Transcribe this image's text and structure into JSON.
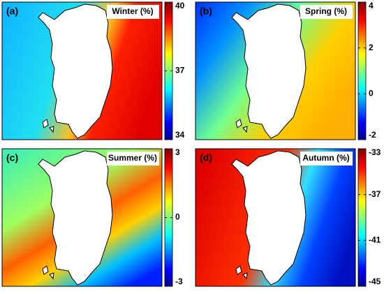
{
  "panels": [
    {
      "label": "(a)",
      "title": "Winter (%)",
      "colorbar": {
        "lim": [
          34,
          40
        ],
        "ticks": [
          34,
          37,
          40
        ]
      }
    },
    {
      "label": "(b)",
      "title": "Spring (%)",
      "colorbar": {
        "lim": [
          -2,
          4
        ],
        "ticks": [
          -2,
          0,
          2,
          4
        ]
      }
    },
    {
      "label": "(c)",
      "title": "Summer (%)",
      "colorbar": {
        "lim": [
          -3,
          3
        ],
        "ticks": [
          -3,
          0,
          3
        ]
      }
    },
    {
      "label": "(d)",
      "title": "Autumn (%)",
      "colorbar": {
        "lim": [
          -45,
          -33
        ],
        "ticks": [
          -45,
          -41,
          -37,
          -33
        ]
      }
    }
  ]
}
